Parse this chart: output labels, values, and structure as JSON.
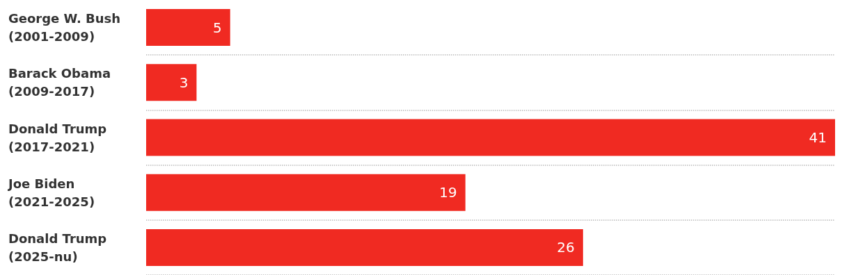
{
  "chart_data": {
    "type": "bar",
    "orientation": "horizontal",
    "categories": [
      "George W. Bush\n(2001-2009)",
      "Barack Obama\n(2009-2017)",
      "Donald Trump\n(2017-2021)",
      "Joe Biden\n(2021-2025)",
      "Donald Trump\n(2025-nu)"
    ],
    "values": [
      5,
      3,
      41,
      19,
      26
    ],
    "color": "#f02a22",
    "data_labels": true,
    "grid": "y"
  }
}
